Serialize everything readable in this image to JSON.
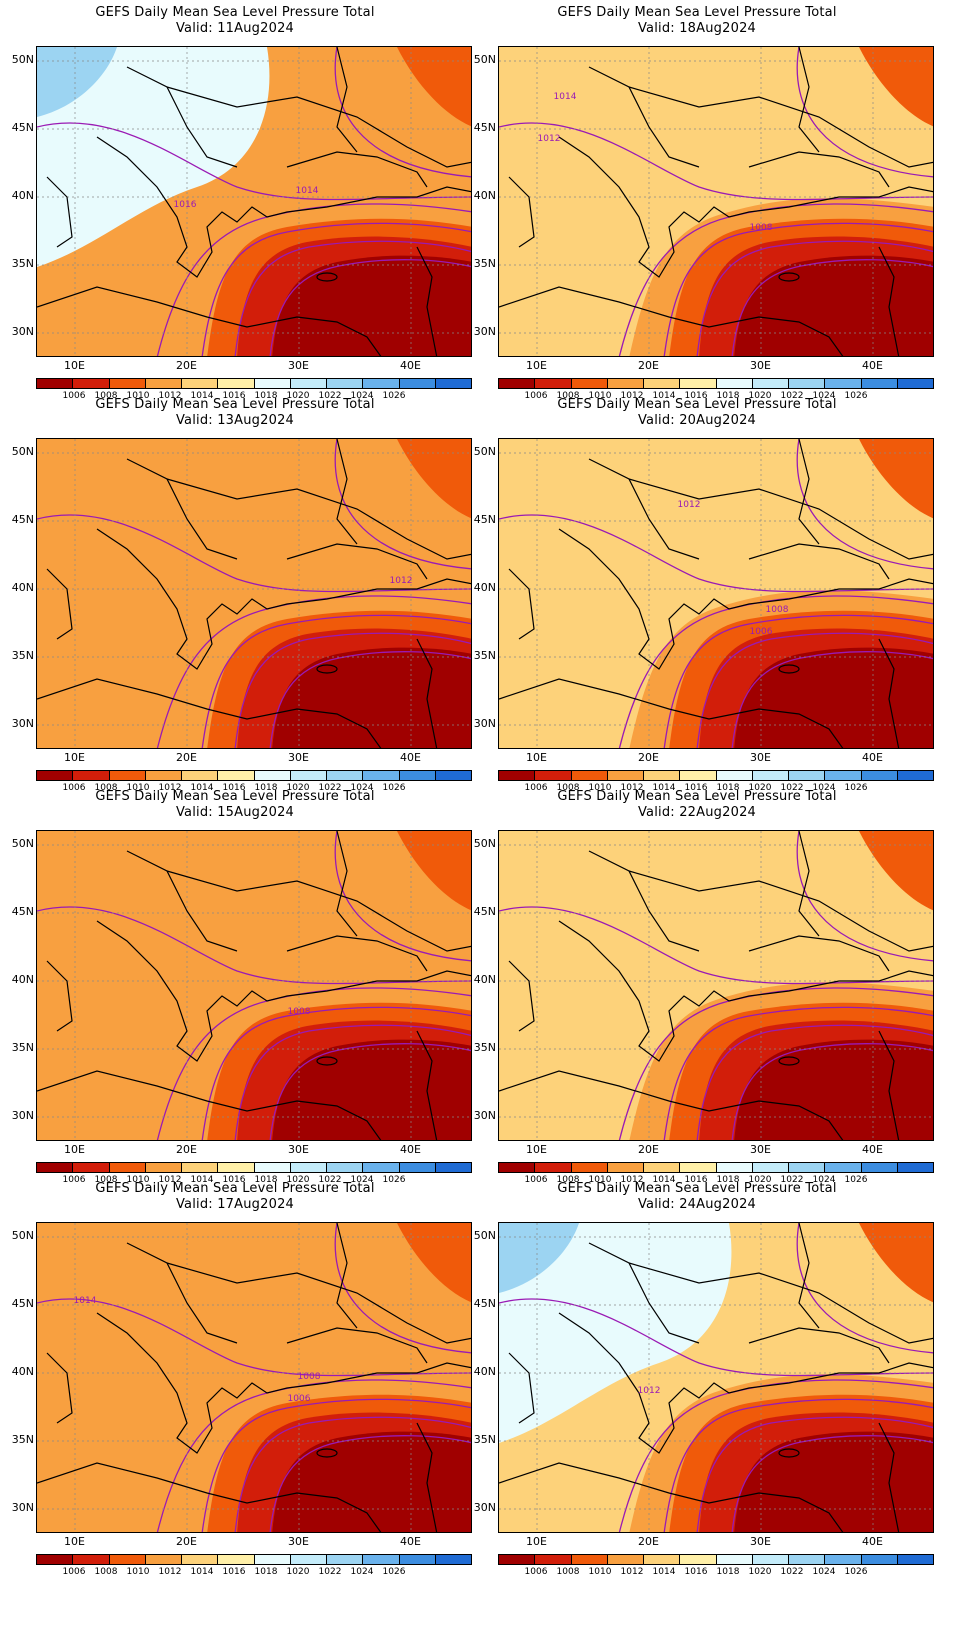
{
  "common": {
    "title": "GEFS Daily Mean Sea Level Pressure Total",
    "lat_labels": [
      "50N",
      "45N",
      "40N",
      "35N",
      "30N"
    ],
    "lon_labels": [
      "10E",
      "20E",
      "30E",
      "40E"
    ],
    "colorbar_labels": [
      "1006",
      "1008",
      "1010",
      "1012",
      "1014",
      "1016",
      "1018",
      "1020",
      "1022",
      "1024",
      "1026"
    ],
    "colorbar_colors": [
      "#a00000",
      "#d21e0a",
      "#f05a0a",
      "#f8a040",
      "#fdd27a",
      "#fff0a8",
      "#e8fbfd",
      "#c4ecfa",
      "#9cd4f2",
      "#6ab2ec",
      "#3c8de0",
      "#1f6bd4"
    ]
  },
  "panels": [
    {
      "valid": "Valid: 11Aug2024",
      "contour_labels": [
        "1016",
        "1014"
      ]
    },
    {
      "valid": "Valid: 18Aug2024",
      "contour_labels": [
        "1014",
        "1012",
        "1008"
      ]
    },
    {
      "valid": "Valid: 13Aug2024",
      "contour_labels": [
        "1012"
      ]
    },
    {
      "valid": "Valid: 20Aug2024",
      "contour_labels": [
        "1012",
        "1008",
        "1006"
      ]
    },
    {
      "valid": "Valid: 15Aug2024",
      "contour_labels": [
        "1008"
      ]
    },
    {
      "valid": "Valid: 22Aug2024",
      "contour_labels": []
    },
    {
      "valid": "Valid: 17Aug2024",
      "contour_labels": [
        "1014",
        "1008",
        "1006"
      ]
    },
    {
      "valid": "Valid: 24Aug2024",
      "contour_labels": [
        "1012"
      ]
    }
  ]
}
